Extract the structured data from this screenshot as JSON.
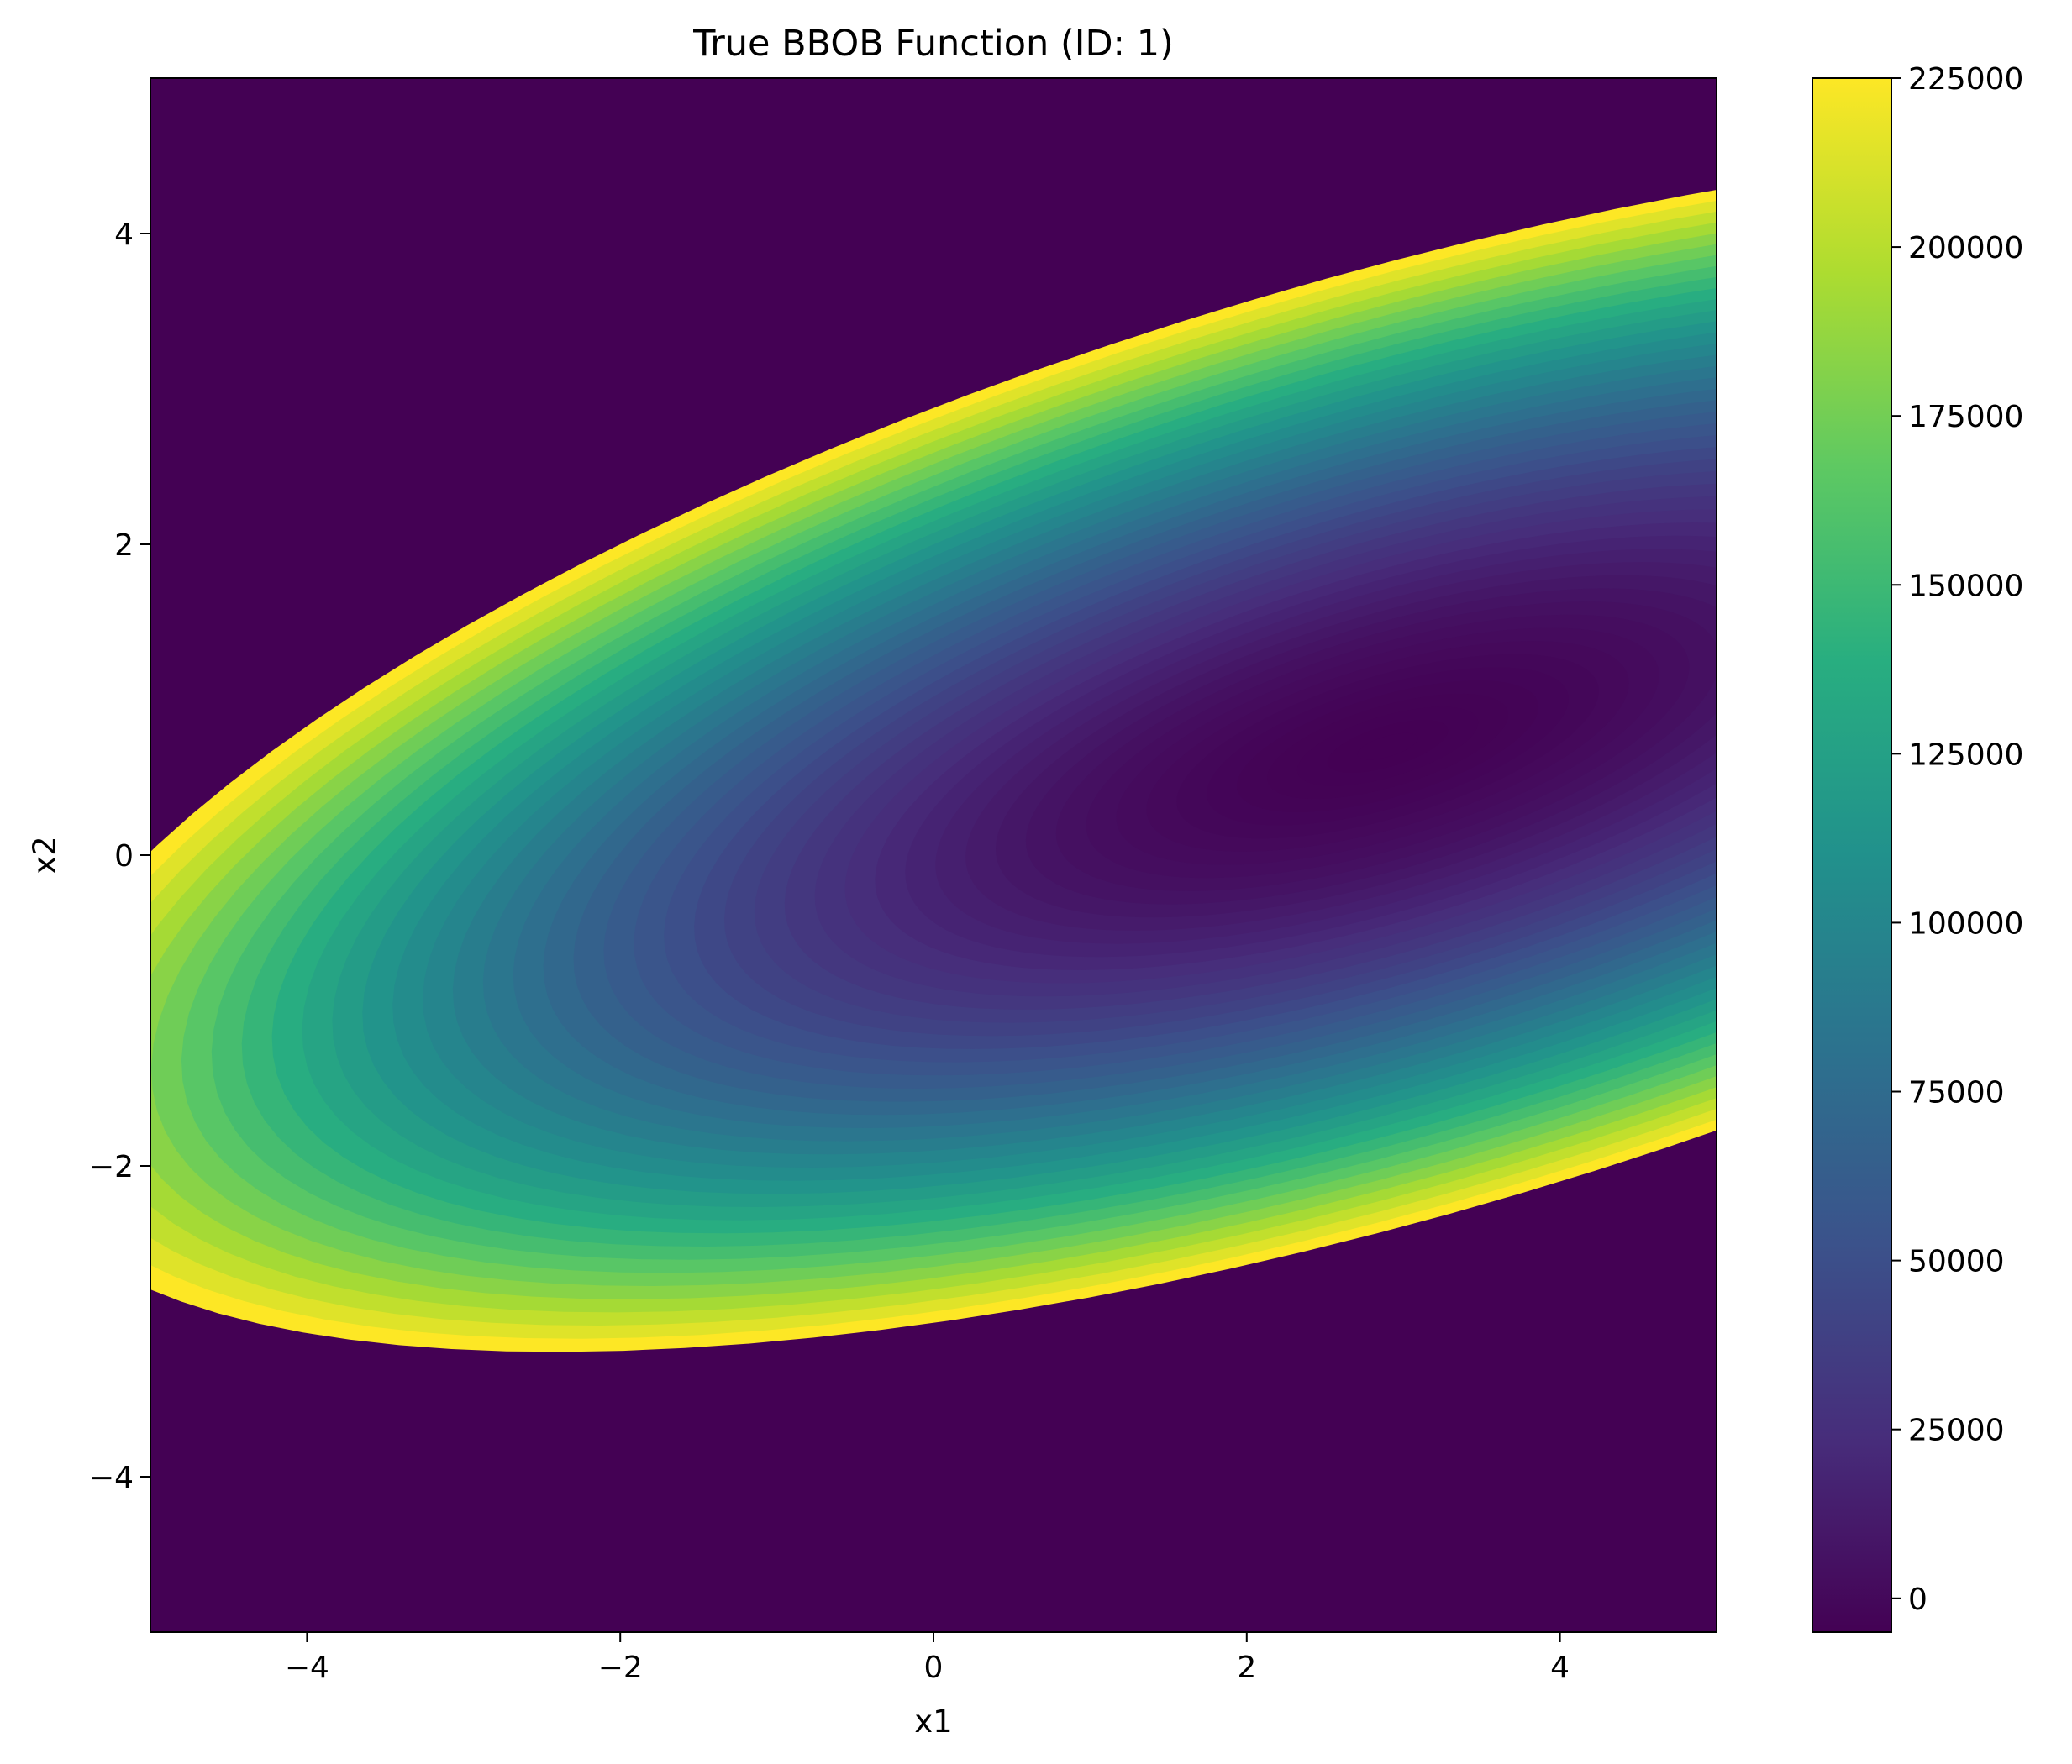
{
  "chart_data": {
    "type": "heatmap",
    "title": "True BBOB Function (ID: 1)",
    "xlabel": "x1",
    "ylabel": "x2",
    "xlim": [
      -5,
      5
    ],
    "ylim": [
      -5,
      5
    ],
    "x_ticks": [
      -4,
      -2,
      0,
      2,
      4
    ],
    "y_ticks": [
      -4,
      -2,
      0,
      2,
      4
    ],
    "x_tick_labels": [
      "−4",
      "−2",
      "0",
      "2",
      "4"
    ],
    "y_tick_labels": [
      "−4",
      "−2",
      "0",
      "2",
      "4"
    ],
    "colorbar": {
      "colormap": "viridis",
      "range": [
        -5000,
        225000
      ],
      "ticks": [
        0,
        25000,
        50000,
        75000,
        100000,
        125000,
        150000,
        175000,
        200000,
        225000
      ],
      "tick_labels": [
        "0",
        "25000",
        "50000",
        "75000",
        "100000",
        "125000",
        "150000",
        "175000",
        "200000",
        "225000"
      ]
    },
    "grid": false
  }
}
